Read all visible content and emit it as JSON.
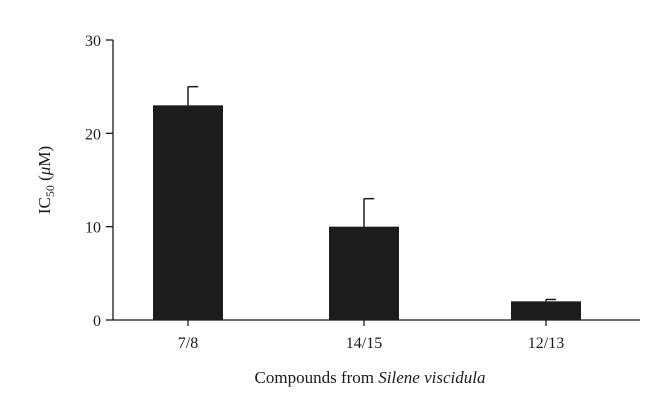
{
  "chart_data": {
    "type": "bar",
    "categories": [
      "7/8",
      "14/15",
      "12/13"
    ],
    "values": [
      23,
      10,
      2
    ],
    "errors_upper": [
      2,
      3,
      0.2
    ],
    "ylim": [
      0,
      30
    ],
    "yticks": [
      "0",
      "10",
      "20",
      "30"
    ],
    "ylabel": {
      "prefix": "IC",
      "subscript": "50",
      "unit": " (",
      "unit_symbol": "μ",
      "unit_rest": "M)"
    },
    "xlabel": {
      "prefix": "Compounds from ",
      "italic": "Silene viscidula"
    },
    "colors": {
      "bar": "#1c1c1c",
      "axis": "#1a1a1a",
      "background": "#ffffff"
    },
    "grid": false,
    "legend": "none"
  }
}
